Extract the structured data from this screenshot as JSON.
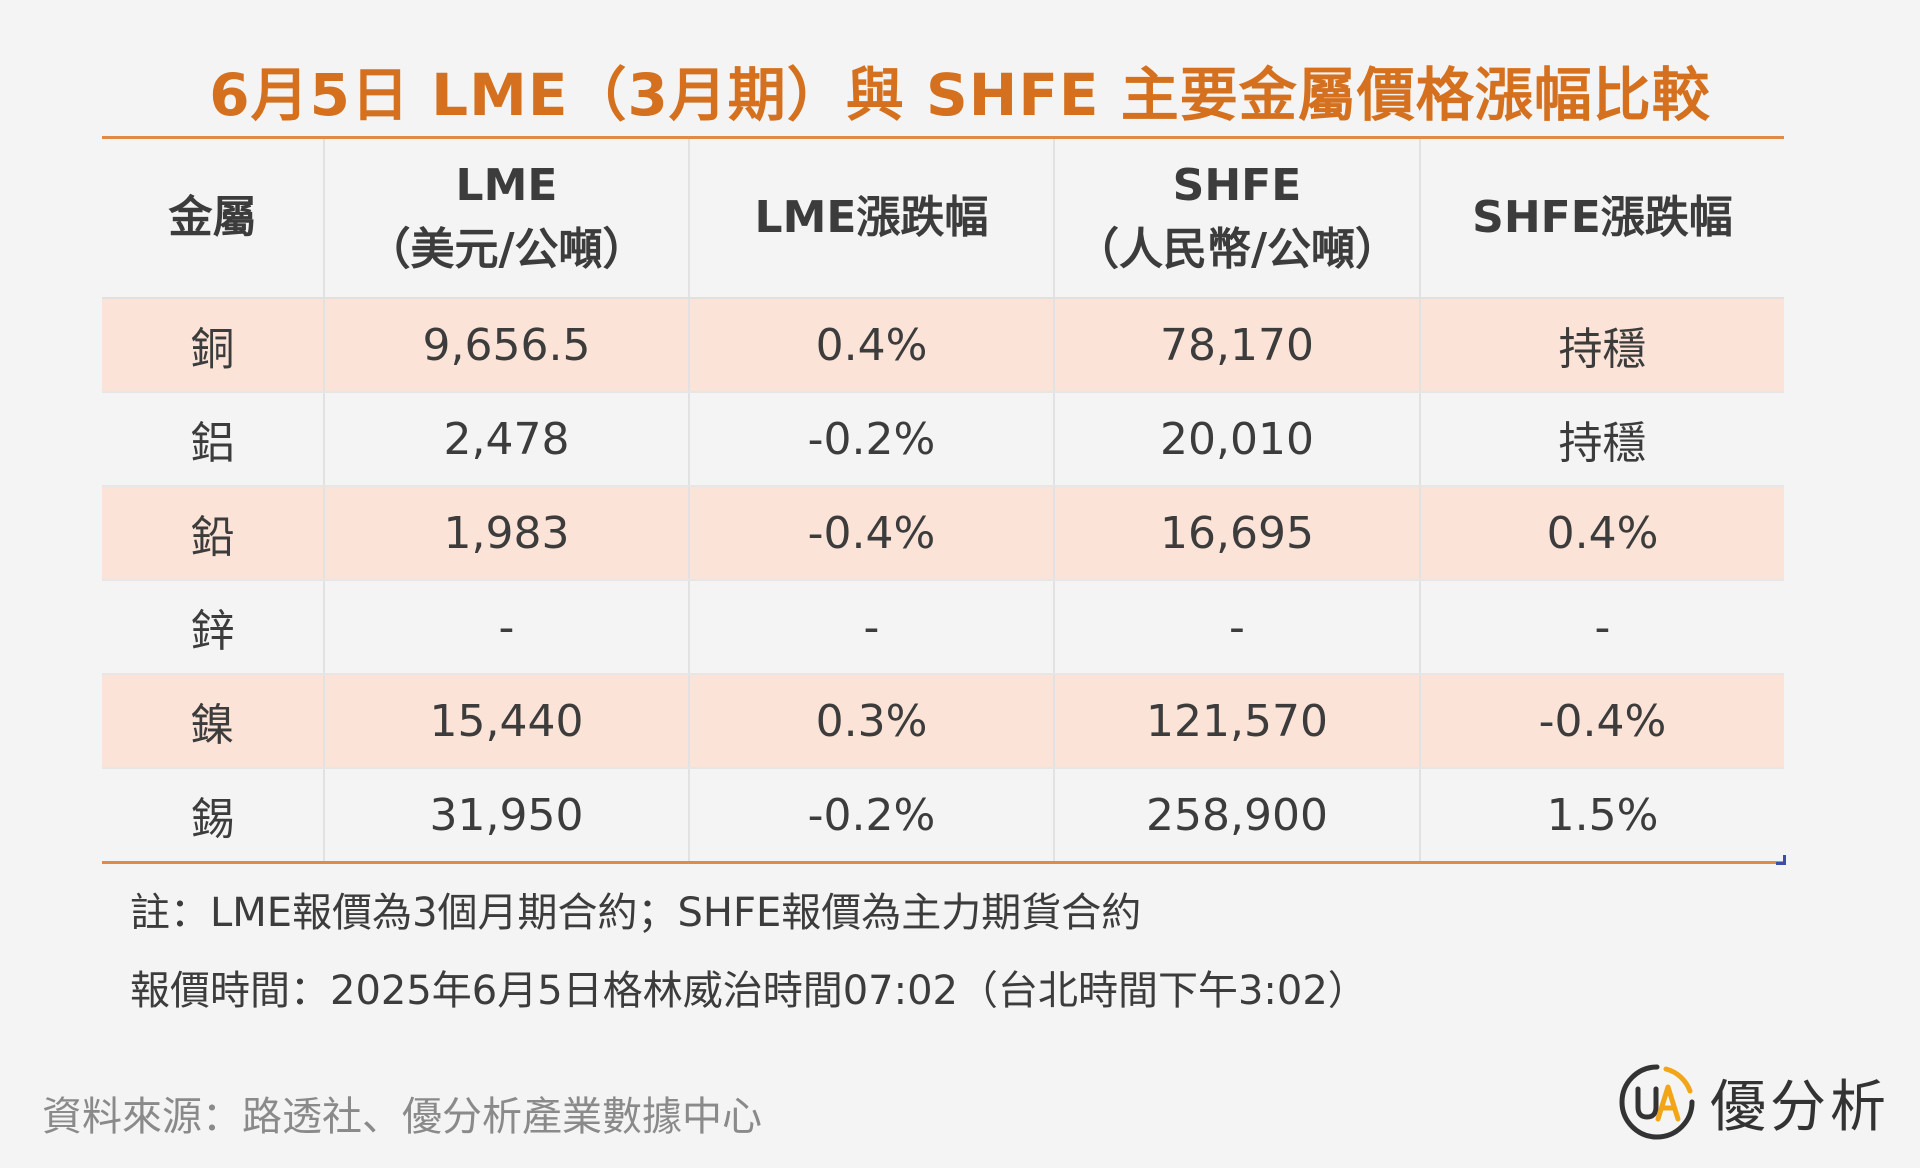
{
  "title": "6月5日 LME（3月期）與 SHFE 主要金屬價格漲幅比較",
  "table": {
    "headers": [
      {
        "line1": "金屬",
        "line2": ""
      },
      {
        "line1": "LME",
        "line2": "（美元/公噸）"
      },
      {
        "line1": "LME漲跌幅",
        "line2": ""
      },
      {
        "line1": "SHFE",
        "line2": "（人民幣/公噸）"
      },
      {
        "line1": "SHFE漲跌幅",
        "line2": ""
      }
    ],
    "rows": [
      [
        "銅",
        "9,656.5",
        "0.4%",
        "78,170",
        "持穩"
      ],
      [
        "鋁",
        "2,478",
        "-0.2%",
        "20,010",
        "持穩"
      ],
      [
        "鉛",
        "1,983",
        "-0.4%",
        "16,695",
        "0.4%"
      ],
      [
        "鋅",
        "-",
        "-",
        "-",
        "-"
      ],
      [
        "鎳",
        "15,440",
        "0.3%",
        "121,570",
        "-0.4%"
      ],
      [
        "錫",
        "31,950",
        "-0.2%",
        "258,900",
        "1.5%"
      ]
    ]
  },
  "notes": {
    "note1": "註：LME報價為3個月期合約；SHFE報價為主力期貨合約",
    "note2": "報價時間：2025年6月5日格林威治時間07:02（台北時間下午3:02）"
  },
  "source": "資料來源：路透社、優分析產業數據中心",
  "logo": {
    "text": "優分析",
    "icon": "ua-logo-icon"
  },
  "colors": {
    "title": "#d4701e",
    "rule": "#e08a48",
    "stripe": "#fbe3d7",
    "background": "#f4f4f4"
  }
}
